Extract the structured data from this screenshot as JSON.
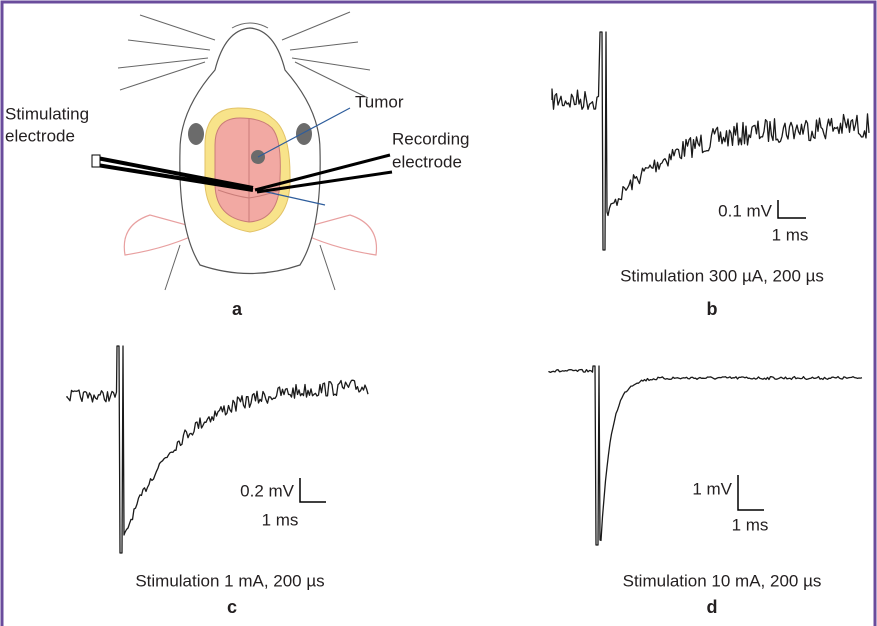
{
  "panel_a": {
    "label": "a",
    "stimulating_electrode": [
      "Stimulating",
      "electrode"
    ],
    "tumor": "Tumor",
    "recording_electrode": [
      "Recording",
      "electrode"
    ]
  },
  "panel_b": {
    "label": "b",
    "caption": "Stimulation 300 µA, 200 µs",
    "scale_v": "0.1 mV",
    "scale_t": "1 ms"
  },
  "panel_c": {
    "label": "c",
    "caption": "Stimulation 1 mA, 200 µs",
    "scale_v": "0.2 mV",
    "scale_t": "1 ms"
  },
  "panel_d": {
    "label": "d",
    "caption": "Stimulation 10 mA, 200 µs",
    "scale_v": "1 mV",
    "scale_t": "1 ms"
  }
}
